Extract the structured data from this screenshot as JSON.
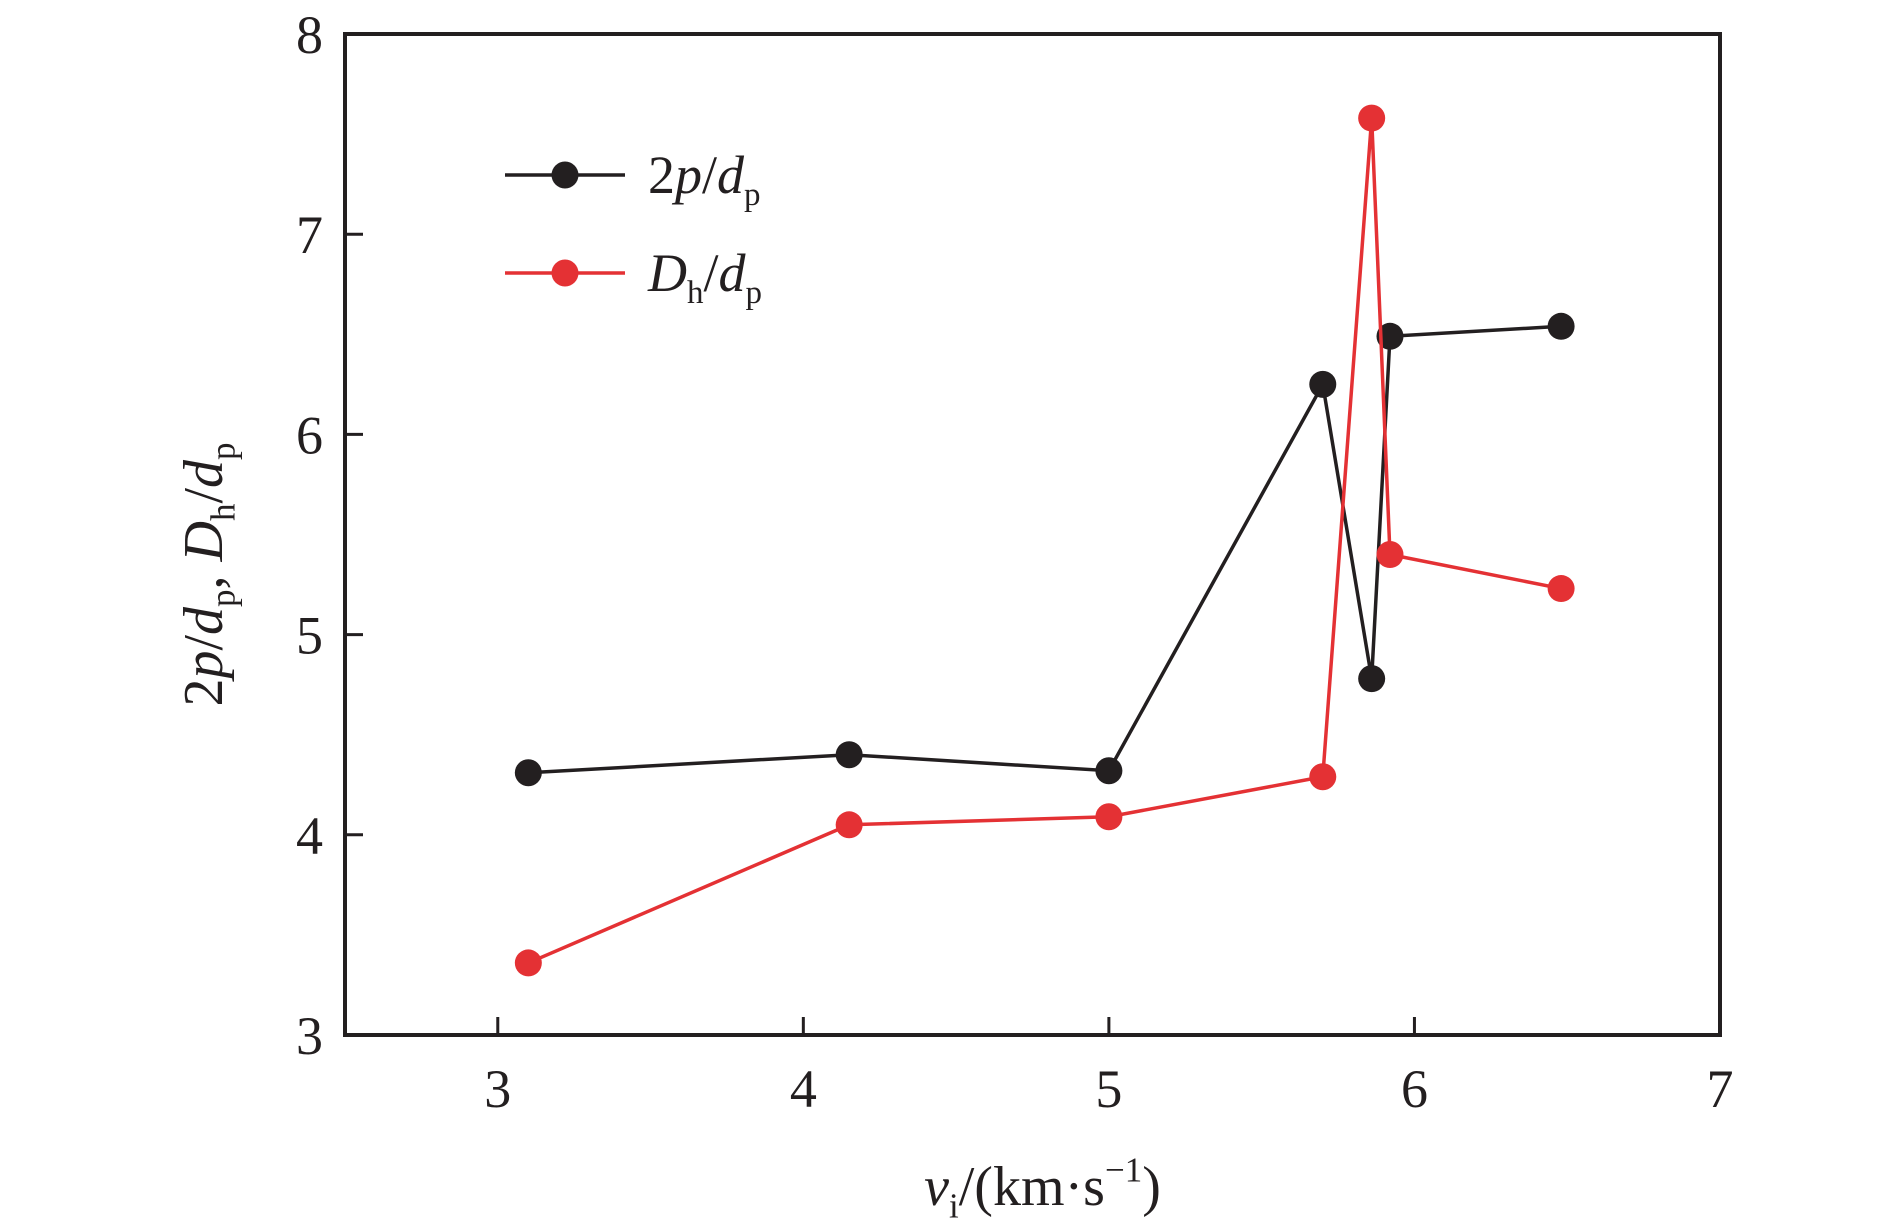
{
  "chart_data": {
    "type": "line",
    "title": "",
    "xlabel": {
      "parts": [
        {
          "t": "v",
          "style": "italic"
        },
        {
          "t": "i",
          "style": "sub"
        },
        {
          "t": "/(km·s",
          "style": "normal"
        },
        {
          "t": "−1",
          "style": "sup"
        },
        {
          "t": ")",
          "style": "normal"
        }
      ]
    },
    "ylabel": {
      "parts": [
        {
          "t": "2",
          "style": "normal"
        },
        {
          "t": "p",
          "style": "italic"
        },
        {
          "t": "/",
          "style": "normal"
        },
        {
          "t": "d",
          "style": "italic"
        },
        {
          "t": "p",
          "style": "sub"
        },
        {
          "t": ", ",
          "style": "normal"
        },
        {
          "t": "D",
          "style": "italic"
        },
        {
          "t": "h",
          "style": "sub"
        },
        {
          "t": "/",
          "style": "normal"
        },
        {
          "t": "d",
          "style": "italic"
        },
        {
          "t": "p",
          "style": "sub"
        }
      ]
    },
    "xlim": [
      2.5,
      7
    ],
    "ylim": [
      3,
      8
    ],
    "xticks": [
      3,
      4,
      5,
      6,
      7
    ],
    "yticks": [
      3,
      4,
      5,
      6,
      7,
      8
    ],
    "xtick_labels": [
      "3",
      "4",
      "5",
      "6",
      "7"
    ],
    "ytick_labels": [
      "3",
      "4",
      "5",
      "6",
      "7",
      "8"
    ],
    "grid": false,
    "legend_position": "top-left",
    "series": [
      {
        "name_parts": [
          {
            "t": "2",
            "style": "normal"
          },
          {
            "t": "p",
            "style": "italic"
          },
          {
            "t": "/",
            "style": "normal"
          },
          {
            "t": "d",
            "style": "italic"
          },
          {
            "t": "p",
            "style": "sub"
          }
        ],
        "color": "#231f20",
        "x": [
          3.1,
          4.15,
          5.0,
          5.7,
          5.86,
          5.92,
          6.48
        ],
        "y": [
          4.31,
          4.4,
          4.32,
          6.25,
          4.78,
          6.49,
          6.54
        ]
      },
      {
        "name_parts": [
          {
            "t": "D",
            "style": "italic"
          },
          {
            "t": "h",
            "style": "sub"
          },
          {
            "t": "/",
            "style": "normal"
          },
          {
            "t": "d",
            "style": "italic"
          },
          {
            "t": "p",
            "style": "sub"
          }
        ],
        "color": "#e43134",
        "x": [
          3.1,
          4.15,
          5.0,
          5.7,
          5.86,
          5.92,
          6.48
        ],
        "y": [
          3.36,
          4.05,
          4.09,
          4.29,
          7.58,
          5.4,
          5.23
        ]
      }
    ]
  }
}
